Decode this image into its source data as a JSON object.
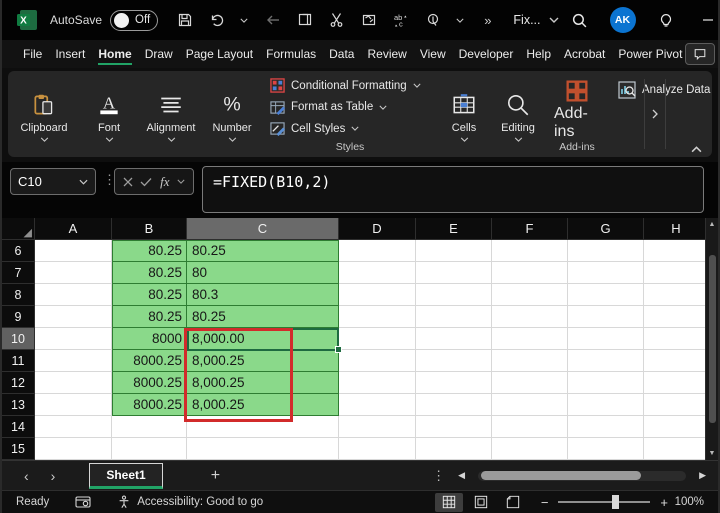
{
  "titlebar": {
    "autosave_label": "AutoSave",
    "autosave_state": "Off",
    "window_title": "Fix...",
    "avatar_initials": "AK"
  },
  "menubar": {
    "items": [
      "File",
      "Insert",
      "Home",
      "Draw",
      "Page Layout",
      "Formulas",
      "Data",
      "Review",
      "View",
      "Developer",
      "Help",
      "Acrobat",
      "Power Pivot"
    ],
    "active_item": "Home"
  },
  "ribbon": {
    "groups": [
      {
        "label": "Clipboard"
      },
      {
        "label": "Font"
      },
      {
        "label": "Alignment"
      },
      {
        "label": "Number"
      }
    ],
    "styles_group": {
      "caption": "Styles",
      "buttons": [
        "Conditional Formatting",
        "Format as Table",
        "Cell Styles"
      ]
    },
    "cells_label": "Cells",
    "editing_label": "Editing",
    "addins": {
      "button_label": "Add-ins",
      "caption": "Add-ins"
    },
    "analyze_data_label": "Analyze Data"
  },
  "formula_bar": {
    "name_box": "C10",
    "formula": "=FIXED(B10,2)"
  },
  "grid": {
    "columns": [
      "A",
      "B",
      "C",
      "D",
      "E",
      "F",
      "G",
      "H"
    ],
    "selected_column": "C",
    "selected_row": 10,
    "active_cell": "C10",
    "rows": [
      {
        "n": 6,
        "b": "80.25",
        "c": "80.25",
        "green": true
      },
      {
        "n": 7,
        "b": "80.25",
        "c": "80",
        "green": true
      },
      {
        "n": 8,
        "b": "80.25",
        "c": "80.3",
        "green": true
      },
      {
        "n": 9,
        "b": "80.25",
        "c": "80.25",
        "green": true
      },
      {
        "n": 10,
        "b": "8000",
        "c": "8,000.00",
        "green": true
      },
      {
        "n": 11,
        "b": "8000.25",
        "c": "8,000.25",
        "green": true
      },
      {
        "n": 12,
        "b": "8000.25",
        "c": "8,000.25",
        "green": true
      },
      {
        "n": 13,
        "b": "8000.25",
        "c": "8,000.25",
        "green": true
      },
      {
        "n": 14,
        "b": "",
        "c": "",
        "green": false
      },
      {
        "n": 15,
        "b": "",
        "c": "",
        "green": false
      }
    ]
  },
  "sheet_bar": {
    "tab_label": "Sheet1"
  },
  "status_bar": {
    "ready_label": "Ready",
    "accessibility_label": "Accessibility: Good to go",
    "zoom_level": "100%"
  },
  "icons": {
    "select_all": "◢",
    "vertical_dots": "⋮",
    "prev_sheet": "‹",
    "next_sheet": "›",
    "add_sheet": "+",
    "scroll_left": "◀",
    "scroll_right": "▶",
    "scroll_up": "▲",
    "scroll_down": "▼",
    "zoom_minus": "−",
    "zoom_plus": "+",
    "overflow": "»"
  },
  "colors": {
    "cell_green": "#8ad98a",
    "accent_green": "#21a366",
    "annotation_red": "#d22b2b",
    "avatar_blue": "#0b74d1"
  }
}
